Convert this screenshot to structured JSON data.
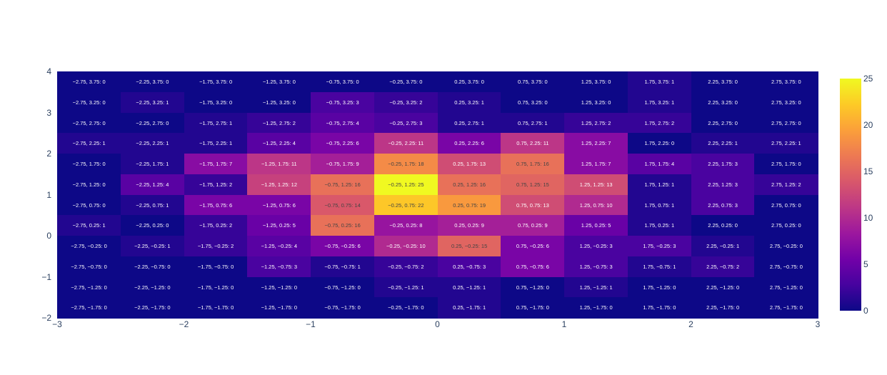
{
  "chart_data": {
    "type": "heatmap",
    "title": "",
    "xlabel": "",
    "ylabel": "",
    "xlim": [
      -3,
      3
    ],
    "ylim": [
      -2,
      4
    ],
    "x": [
      -2.75,
      -2.25,
      -1.75,
      -1.25,
      -0.75,
      -0.25,
      0.25,
      0.75,
      1.25,
      1.75,
      2.25,
      2.75
    ],
    "y": [
      3.75,
      3.25,
      2.75,
      2.25,
      1.75,
      1.25,
      0.75,
      0.25,
      -0.25,
      -0.75,
      -1.25,
      -1.75
    ],
    "z": [
      [
        0,
        0,
        0,
        0,
        0,
        0,
        0,
        0,
        0,
        1,
        0,
        0
      ],
      [
        0,
        1,
        0,
        0,
        3,
        2,
        1,
        0,
        0,
        1,
        0,
        0
      ],
      [
        0,
        0,
        1,
        2,
        4,
        3,
        1,
        1,
        2,
        2,
        0,
        0
      ],
      [
        1,
        1,
        1,
        4,
        6,
        11,
        6,
        11,
        7,
        0,
        1,
        1
      ],
      [
        0,
        1,
        7,
        11,
        9,
        18,
        13,
        16,
        7,
        4,
        3,
        0
      ],
      [
        0,
        4,
        2,
        12,
        16,
        25,
        16,
        15,
        13,
        1,
        3,
        2
      ],
      [
        0,
        1,
        6,
        6,
        14,
        22,
        19,
        13,
        10,
        1,
        3,
        0
      ],
      [
        1,
        0,
        2,
        5,
        16,
        8,
        9,
        9,
        5,
        1,
        0,
        0
      ],
      [
        0,
        1,
        2,
        4,
        6,
        10,
        15,
        6,
        3,
        3,
        1,
        0
      ],
      [
        0,
        0,
        0,
        3,
        1,
        2,
        3,
        6,
        3,
        1,
        2,
        0
      ],
      [
        0,
        0,
        0,
        0,
        0,
        1,
        1,
        0,
        1,
        0,
        0,
        0
      ],
      [
        0,
        0,
        0,
        0,
        0,
        0,
        1,
        0,
        0,
        0,
        0,
        0
      ]
    ],
    "colorscale": "Plasma",
    "zmin": 0,
    "zmax": 25,
    "x_ticks": [
      "−3",
      "−2",
      "−1",
      "0",
      "1",
      "2",
      "3"
    ],
    "y_ticks": [
      "4",
      "3",
      "2",
      "1",
      "0",
      "−1",
      "−2"
    ],
    "colorbar_ticks": [
      "0",
      "5",
      "10",
      "15",
      "20",
      "25"
    ],
    "cell_text_format": "x, y: z",
    "grid": false,
    "legend": "colorbar-right"
  }
}
